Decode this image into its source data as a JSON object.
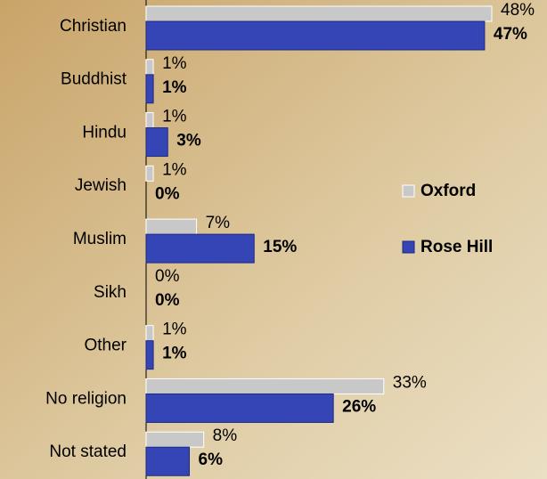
{
  "chart_data": {
    "type": "bar",
    "orientation": "horizontal",
    "categories": [
      "Christian",
      "Buddhist",
      "Hindu",
      "Jewish",
      "Muslim",
      "Sikh",
      "Other",
      "No religion",
      "Not stated"
    ],
    "series": [
      {
        "name": "Oxford",
        "color": "#c8c8c8",
        "values": [
          48,
          1,
          1,
          1,
          7,
          0,
          1,
          33,
          8
        ],
        "value_labels": [
          "48%",
          "1%",
          "1%",
          "1%",
          "7%",
          "0%",
          "1%",
          "33%",
          "8%"
        ]
      },
      {
        "name": "Rose Hill",
        "color": "#3545b5",
        "values": [
          47,
          1,
          3,
          0,
          15,
          0,
          1,
          26,
          6
        ],
        "value_labels": [
          "47%",
          "1%",
          "3%",
          "0%",
          "15%",
          "0%",
          "1%",
          "26%",
          "6%"
        ]
      }
    ],
    "xlim": [
      0,
      48
    ],
    "legend": "right"
  }
}
